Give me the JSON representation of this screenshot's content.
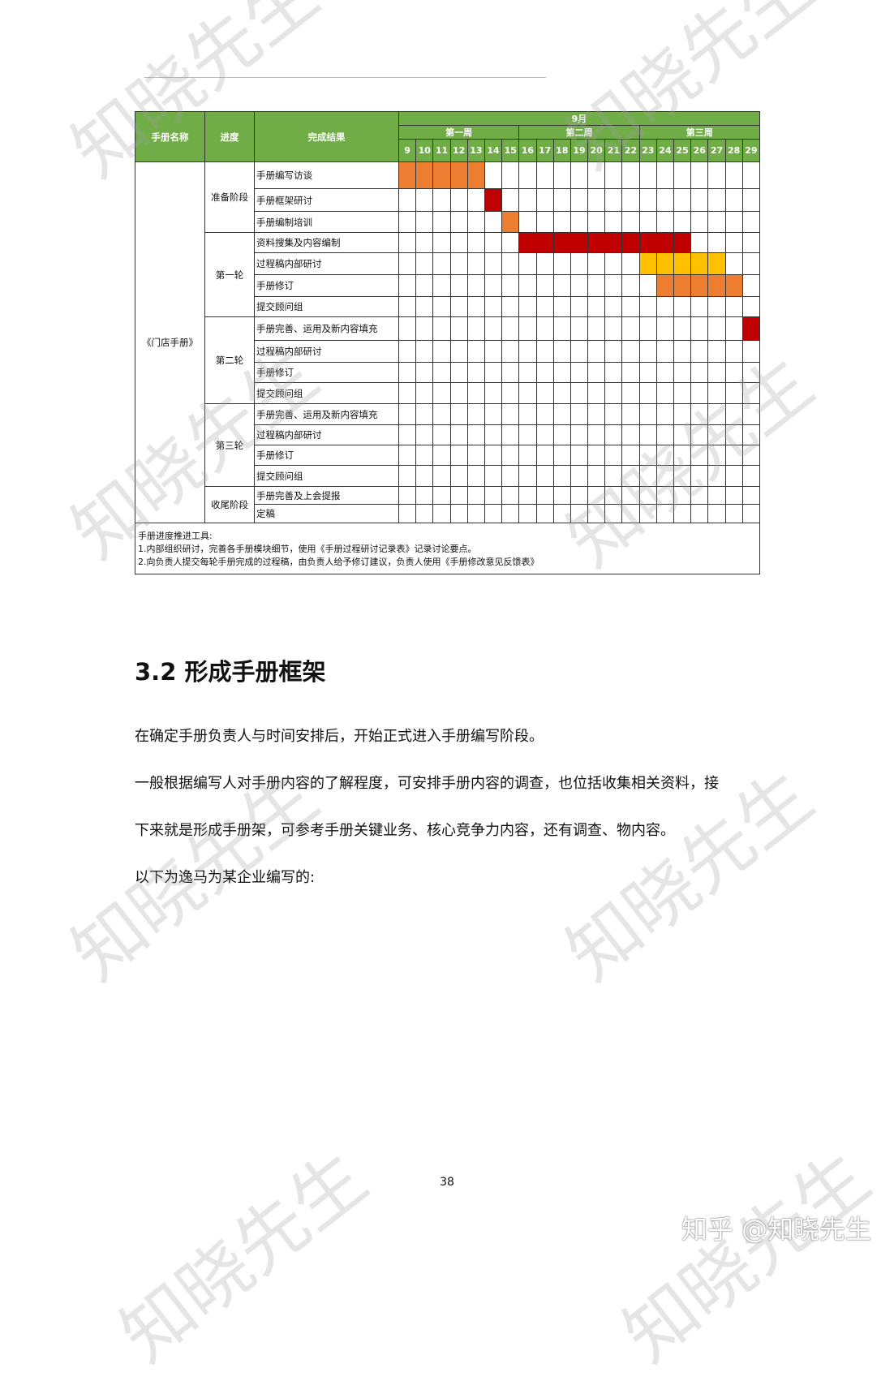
{
  "table": {
    "headers": {
      "name": "手册名称",
      "progress": "进度",
      "result": "完成结果",
      "month": "9月",
      "weeks": [
        "第一周",
        "第二周",
        "第三周"
      ]
    },
    "days": [
      9,
      10,
      11,
      12,
      13,
      14,
      15,
      16,
      17,
      18,
      19,
      20,
      21,
      22,
      23,
      24,
      25,
      26,
      27,
      28,
      29
    ],
    "manual_name": "《门店手册》",
    "colors": {
      "header": "#70ad47",
      "orange": "#ed7d31",
      "red": "#c00000",
      "yellow": "#ffc000"
    },
    "stages": [
      {
        "name": "准备阶段",
        "rows": [
          {
            "task": "手册编写访谈",
            "start": 9,
            "end": 13,
            "color": "orange"
          },
          {
            "task": "手册框架研讨",
            "start": 14,
            "end": 14,
            "color": "red"
          },
          {
            "task": "手册编制培训",
            "start": 15,
            "end": 15,
            "color": "orange"
          }
        ]
      },
      {
        "name": "第一轮",
        "rows": [
          {
            "task": "资料搜集及内容编制",
            "start": 16,
            "end": 25,
            "color": "red"
          },
          {
            "task": "过程稿内部研讨",
            "start": 23,
            "end": 27,
            "color": "yellow"
          },
          {
            "task": "手册修订",
            "start": 24,
            "end": 28,
            "color": "orange"
          },
          {
            "task": "提交顾问组"
          }
        ]
      },
      {
        "name": "第二轮",
        "rows": [
          {
            "task": "手册完善、运用及新内容填充",
            "start": 29,
            "end": 29,
            "color": "red"
          },
          {
            "task": "过程稿内部研讨"
          },
          {
            "task": "手册修订"
          },
          {
            "task": "提交顾问组"
          }
        ]
      },
      {
        "name": "第三轮",
        "rows": [
          {
            "task": "手册完善、运用及新内容填充"
          },
          {
            "task": "过程稿内部研讨"
          },
          {
            "task": "手册修订"
          },
          {
            "task": "提交顾问组"
          }
        ]
      },
      {
        "name": "收尾阶段",
        "rows": [
          {
            "task": "手册完善及上会提报"
          },
          {
            "task": "定稿"
          }
        ]
      }
    ],
    "notes": [
      "手册进度推进工具:",
      "1.内部组织研讨，完善各手册模块细节，使用《手册过程研讨记录表》记录讨论要点。",
      "2.向负责人提交每轮手册完成的过程稿，由负责人给予修订建议，负责人使用《手册修改意见反馈表》"
    ]
  },
  "heading": "3.2 形成手册框架",
  "paragraphs": [
    "在确定手册负责人与时间安排后，开始正式进入手册编写阶段。",
    "一般根据编写人对手册内容的了解程度，可安排手册内容的调查，也位括收集相关资料，接",
    "下来就是形成手册架，可参考手册关键业务、核心竞争力内容，还有调查、物内容。",
    "以下为逸马为某企业编写的:"
  ],
  "page_number": "38",
  "watermark": "知晓先生",
  "zhihu_mark": "知乎 @知晓先生"
}
